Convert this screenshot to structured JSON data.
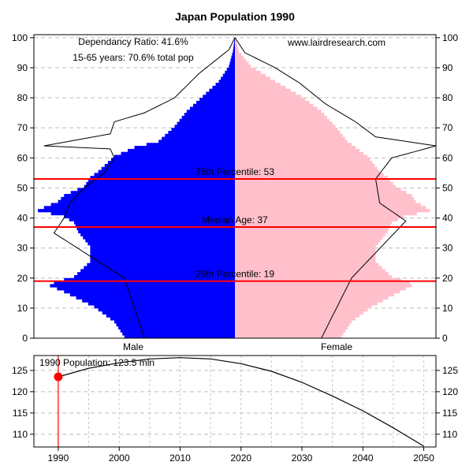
{
  "chart_data": [
    {
      "type": "bar",
      "subtype": "population-pyramid",
      "title": "Japan Population 1990",
      "annotations": {
        "dependency_ratio": "Dependancy Ratio: 41.6%",
        "working_age": "15-65 years: 70.6% total pop",
        "source": "www.lairdresearch.com"
      },
      "xlabel_left": "Male",
      "xlabel_right": "Female",
      "ylim": [
        0,
        101
      ],
      "yticks": [
        "0",
        "10",
        "20",
        "30",
        "40",
        "50",
        "60",
        "70",
        "80",
        "90",
        "100"
      ],
      "grid": true,
      "percentile_lines": [
        {
          "label": "75th Percentile: 53",
          "age": 53
        },
        {
          "label": "Median Age: 37",
          "age": 37
        },
        {
          "label": "25th Percentile: 19",
          "age": 19
        }
      ],
      "line_color": "#ff0000",
      "series": [
        {
          "color": "#0000ff"
        },
        {
          "color": "#ffc0cb"
        }
      ],
      "age_bin_anchors": [
        0,
        5,
        10,
        15,
        17,
        18,
        20,
        25,
        30,
        35,
        38,
        40,
        42,
        43,
        45,
        47,
        50,
        53,
        55,
        60,
        63,
        65,
        70,
        75,
        80,
        85,
        90,
        95,
        100
      ],
      "male_anchors": [
        0.55,
        0.6,
        0.7,
        0.85,
        0.92,
        0.9,
        0.8,
        0.72,
        0.72,
        0.78,
        0.8,
        0.85,
        0.98,
        0.95,
        0.88,
        0.85,
        0.75,
        0.72,
        0.68,
        0.6,
        0.5,
        0.38,
        0.3,
        0.24,
        0.16,
        0.08,
        0.03,
        0.01,
        0.0
      ],
      "female_anchors": [
        0.53,
        0.58,
        0.68,
        0.82,
        0.88,
        0.87,
        0.78,
        0.7,
        0.7,
        0.76,
        0.78,
        0.84,
        0.97,
        0.95,
        0.9,
        0.88,
        0.8,
        0.76,
        0.72,
        0.66,
        0.6,
        0.56,
        0.5,
        0.43,
        0.33,
        0.2,
        0.08,
        0.02,
        0.0
      ],
      "outline_male_anchors": [
        [
          0,
          0.45
        ],
        [
          20,
          0.55
        ],
        [
          35,
          0.9
        ],
        [
          40,
          0.85
        ],
        [
          45,
          0.82
        ],
        [
          50,
          0.75
        ],
        [
          55,
          0.65
        ],
        [
          60,
          0.6
        ],
        [
          63,
          0.62
        ],
        [
          64,
          0.95
        ],
        [
          68,
          0.62
        ],
        [
          72,
          0.6
        ],
        [
          75,
          0.45
        ],
        [
          80,
          0.3
        ],
        [
          88,
          0.18
        ],
        [
          96,
          0.03
        ],
        [
          100,
          0.0
        ]
      ],
      "outline_female_anchors": [
        [
          0,
          0.43
        ],
        [
          20,
          0.58
        ],
        [
          39,
          0.85
        ],
        [
          45,
          0.72
        ],
        [
          53,
          0.7
        ],
        [
          60,
          0.78
        ],
        [
          64,
          1.0
        ],
        [
          67,
          0.7
        ],
        [
          72,
          0.6
        ],
        [
          78,
          0.45
        ],
        [
          85,
          0.32
        ],
        [
          90,
          0.2
        ],
        [
          95,
          0.05
        ],
        [
          100,
          0.0
        ]
      ]
    },
    {
      "type": "line",
      "title": "1990 Population: 123.5 mln",
      "x": [
        1990,
        1995,
        2000,
        2005,
        2010,
        2015,
        2020,
        2025,
        2030,
        2035,
        2040,
        2045,
        2050
      ],
      "y": [
        123.5,
        125.5,
        126.8,
        127.7,
        128.0,
        127.7,
        126.6,
        124.8,
        122.2,
        119.0,
        115.5,
        111.5,
        107.2
      ],
      "xlim": [
        1986,
        2052
      ],
      "ylim": [
        107,
        128.5
      ],
      "xticks": [
        "1990",
        "2000",
        "2010",
        "2020",
        "2030",
        "2040",
        "2050"
      ],
      "yticks": [
        "110",
        "115",
        "120",
        "125"
      ],
      "highlight_point": {
        "x": 1990,
        "y": 123.5
      },
      "highlight_color": "#ff0000",
      "grid": true
    }
  ]
}
